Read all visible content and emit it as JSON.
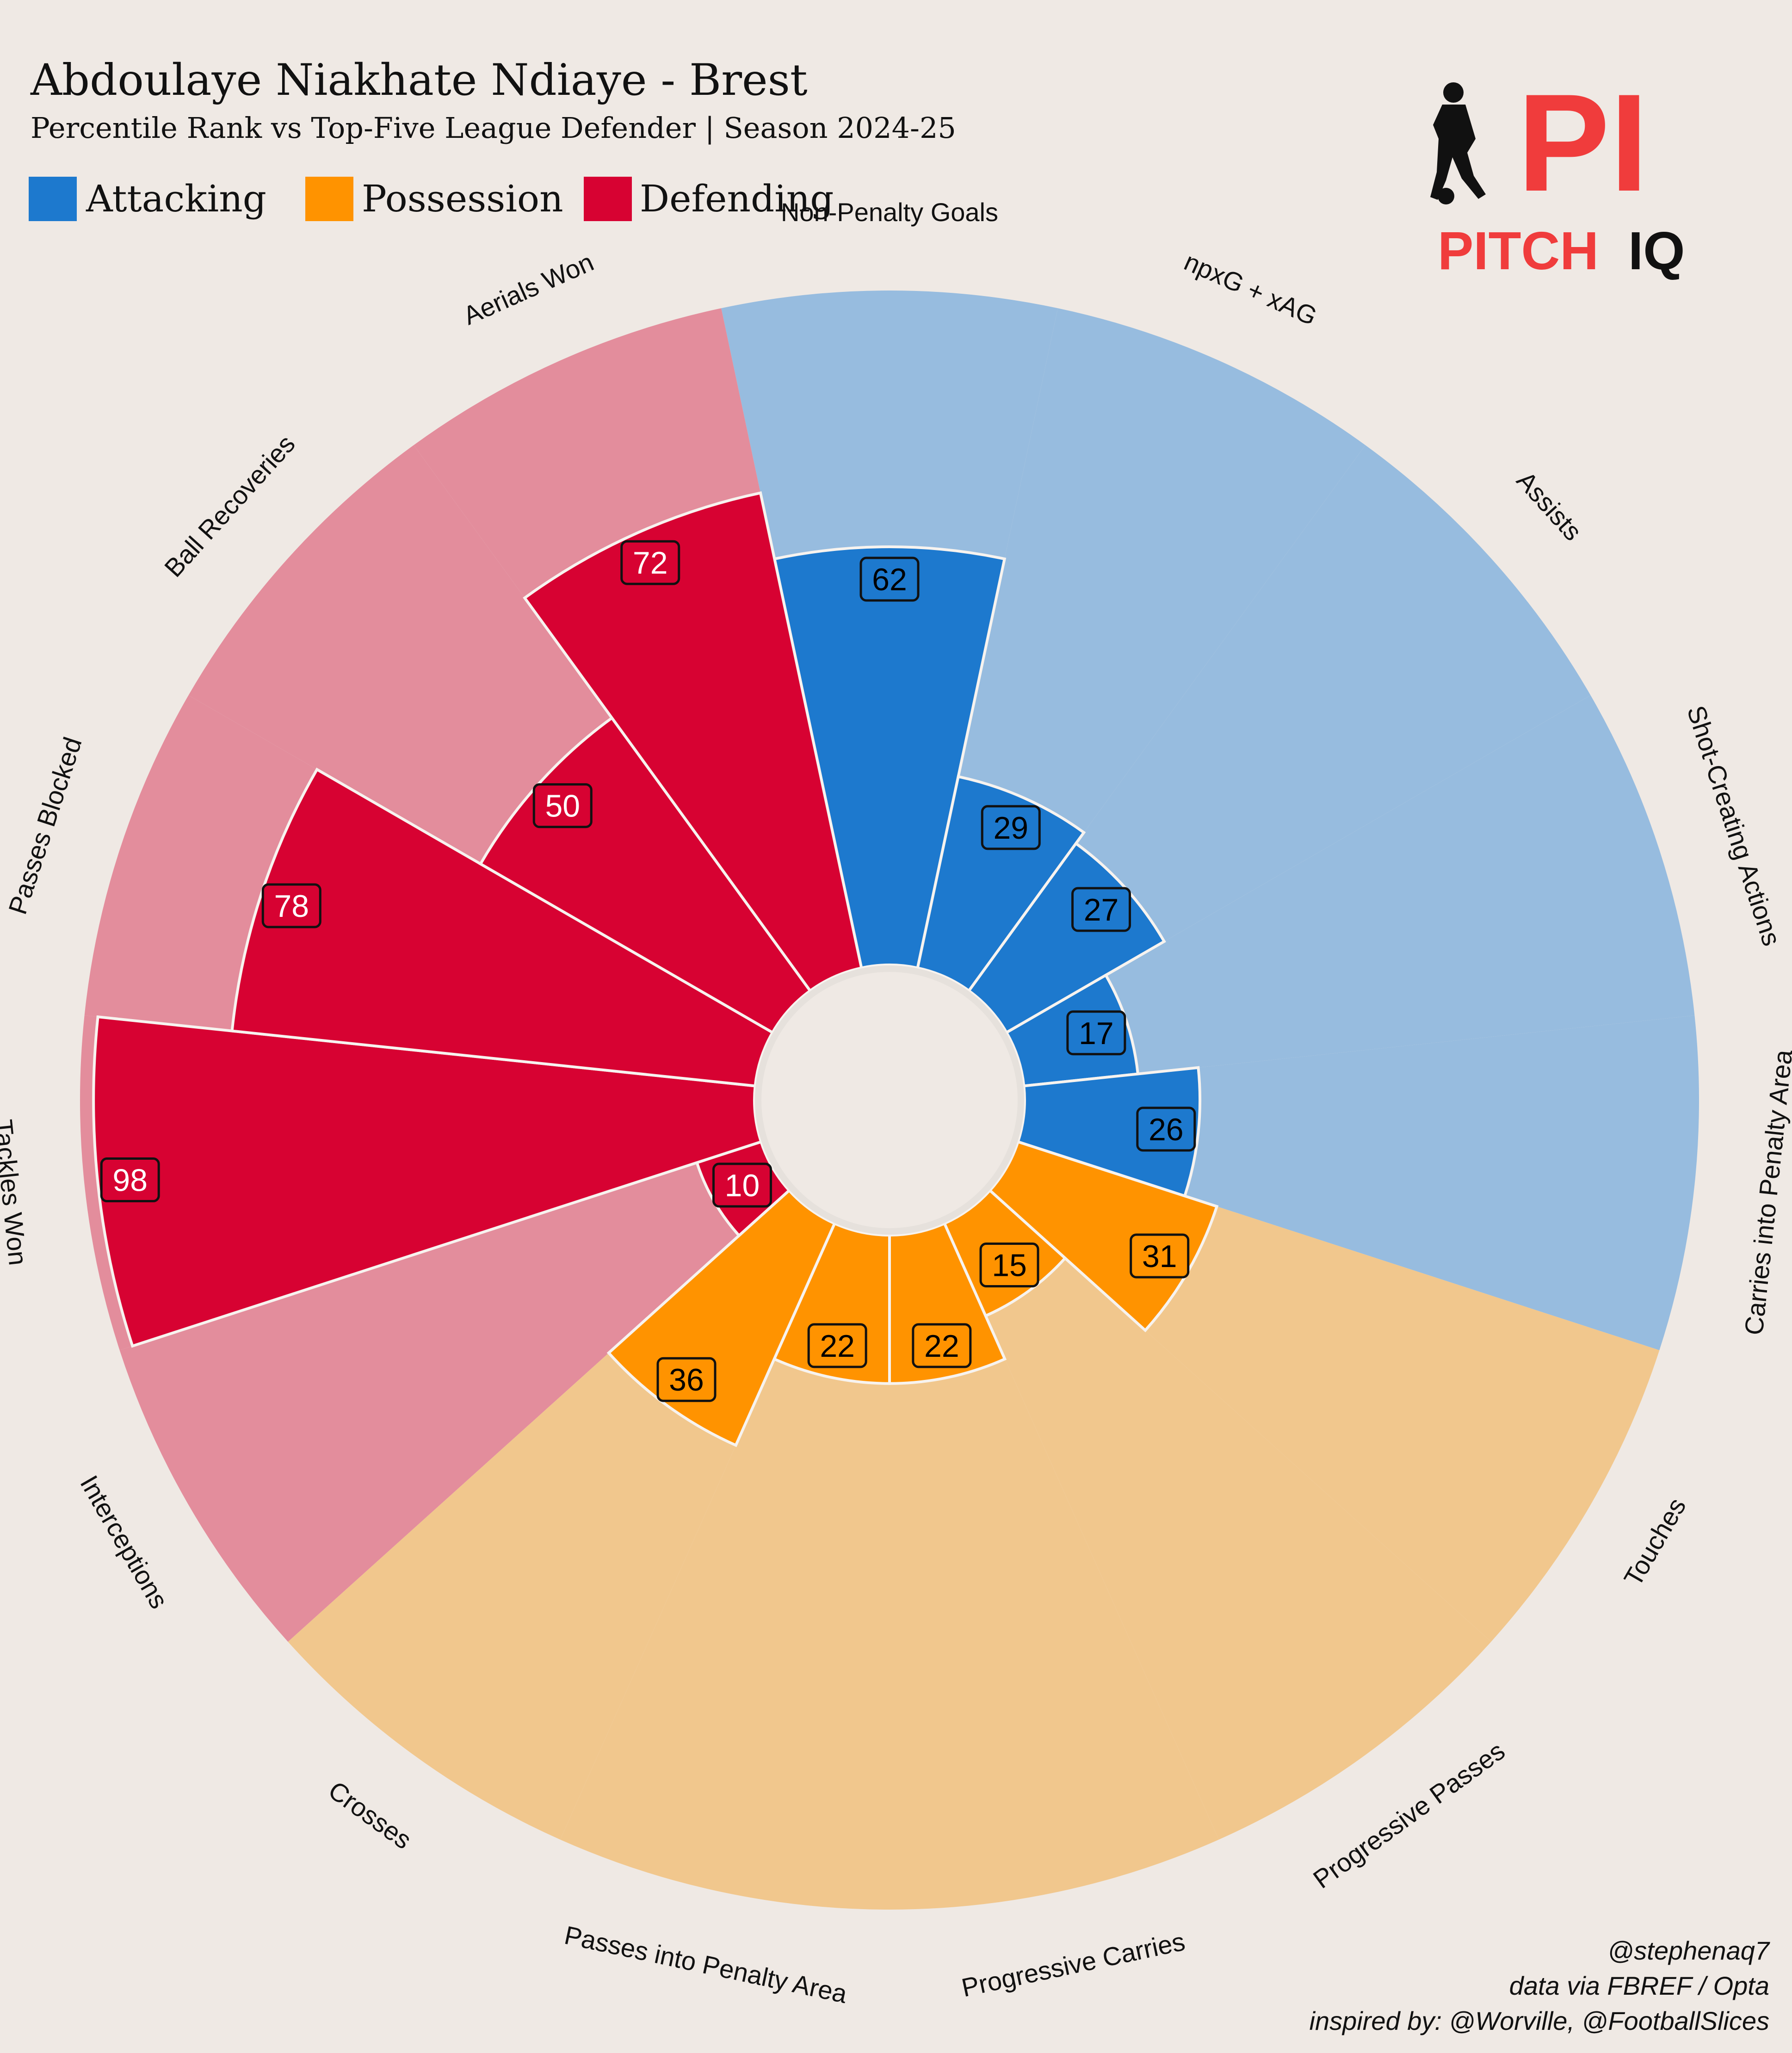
{
  "header": {
    "title": "Abdoulaye Niakhate Ndiaye - Brest",
    "subtitle": "Percentile Rank vs Top-Five League Defender | Season 2024-25"
  },
  "legend": [
    {
      "label": "Attacking",
      "color": "#1d79ce"
    },
    {
      "label": "Possession",
      "color": "#ff9300"
    },
    {
      "label": "Defending",
      "color": "#d70232"
    }
  ],
  "logo": {
    "mark": "PI",
    "word_left": "PITCH",
    "word_right": "IQ",
    "color": "#f03c3c"
  },
  "credits": {
    "line1": "@stephenaq7",
    "line2": "data via FBREF / Opta",
    "line3": "inspired by: @Worville, @FootballSlices"
  },
  "chart_data": {
    "type": "pie",
    "variant": "polar-bar (pizza)",
    "value_range": [
      0,
      100
    ],
    "slices": [
      {
        "label": "Non-Penalty Goals",
        "value": 62,
        "group": "Attacking"
      },
      {
        "label": "npxG + xAG",
        "value": 29,
        "group": "Attacking"
      },
      {
        "label": "Assists",
        "value": 27,
        "group": "Attacking"
      },
      {
        "label": "Shot-Creating Actions",
        "value": 17,
        "group": "Attacking"
      },
      {
        "label": "Carries into Penalty Area",
        "value": 26,
        "group": "Attacking"
      },
      {
        "label": "Touches",
        "value": 31,
        "group": "Possession"
      },
      {
        "label": "Progressive Passes",
        "value": 15,
        "group": "Possession"
      },
      {
        "label": "Progressive Carries",
        "value": 22,
        "group": "Possession"
      },
      {
        "label": "Passes into Penalty Area",
        "value": 22,
        "group": "Possession"
      },
      {
        "label": "Crosses",
        "value": 36,
        "group": "Possession"
      },
      {
        "label": "Interceptions",
        "value": 10,
        "group": "Defending"
      },
      {
        "label": "Tackles Won",
        "value": 98,
        "group": "Defending"
      },
      {
        "label": "Passes Blocked",
        "value": 78,
        "group": "Defending"
      },
      {
        "label": "Ball Recoveries",
        "value": 50,
        "group": "Defending"
      },
      {
        "label": "Aerials Won",
        "value": 72,
        "group": "Defending"
      }
    ],
    "group_colors": {
      "Attacking": {
        "bar": "#1d79ce",
        "bg": "#97bcdf",
        "text": "#000000"
      },
      "Possession": {
        "bar": "#ff9300",
        "bg": "#f1c78d",
        "text": "#000000"
      },
      "Defending": {
        "bar": "#d70232",
        "bg": "#e38d9c",
        "text": "#ffffff"
      }
    }
  }
}
